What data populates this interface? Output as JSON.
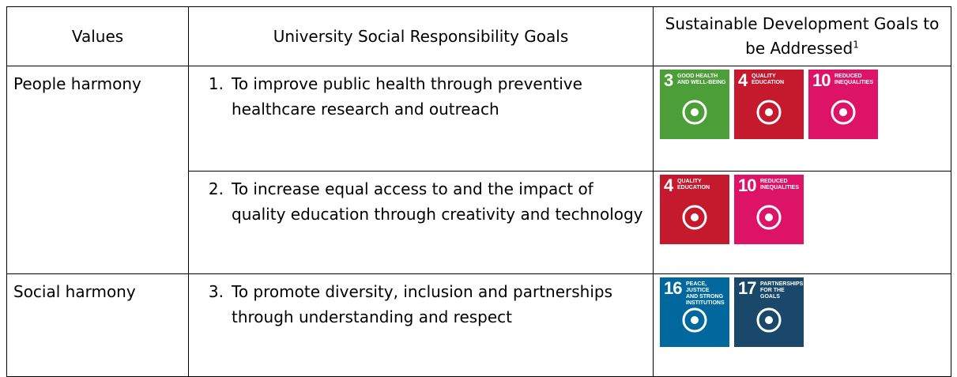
{
  "table": {
    "header": {
      "values": "Values",
      "goals": "University Social Responsibility Goals",
      "sdgs": "Sustainable Development Goals to be Addressed",
      "sdgs_note": "1"
    },
    "rows": [
      {
        "value": "People harmony",
        "goals": [
          {
            "number": "1.",
            "text": "To improve public health through preventive healthcare research and outreach",
            "sdgs": [
              {
                "number": "3",
                "label": [
                  "GOOD HEALTH",
                  "AND WELL-BEING"
                ],
                "color": "#4c9f38"
              },
              {
                "number": "4",
                "label": [
                  "QUALITY",
                  "EDUCATION"
                ],
                "color": "#c5192d"
              },
              {
                "number": "10",
                "label": [
                  "REDUCED",
                  "INEQUALITIES"
                ],
                "color": "#dd1367"
              }
            ]
          },
          {
            "number": "2.",
            "text": "To increase equal access to and the impact of quality education through creativity and technology",
            "sdgs": [
              {
                "number": "4",
                "label": [
                  "QUALITY",
                  "EDUCATION"
                ],
                "color": "#c5192d"
              },
              {
                "number": "10",
                "label": [
                  "REDUCED",
                  "INEQUALITIES"
                ],
                "color": "#dd1367"
              }
            ]
          }
        ]
      },
      {
        "value": "Social harmony",
        "goals": [
          {
            "number": "3.",
            "text": "To promote diversity, inclusion and partnerships through understanding and respect",
            "sdgs": [
              {
                "number": "16",
                "label": [
                  "PEACE, JUSTICE",
                  "AND STRONG",
                  "INSTITUTIONS"
                ],
                "color": "#00689d"
              },
              {
                "number": "17",
                "label": [
                  "PARTNERSHIPS",
                  "FOR THE GOALS"
                ],
                "color": "#19486a"
              }
            ]
          }
        ]
      }
    ]
  }
}
